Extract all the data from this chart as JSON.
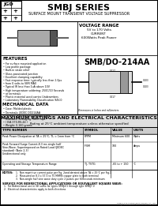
{
  "title": "SMBJ SERIES",
  "subtitle": "SURFACE MOUNT TRANSIENT VOLTAGE SUPPRESSOR",
  "voltage_range_title": "VOLTAGE RANGE",
  "voltage_range_line1": "5V to 170 Volts",
  "voltage_range_line2": "CURRENT",
  "voltage_range_line3": "600Watts Peak Power",
  "part_label": "SMB/DO-214AA",
  "features_title": "FEATURES",
  "features": [
    "For surface mounted application",
    "Low profile package",
    "Built-in strain relief",
    "Glass passivated junction",
    "Excellent clamping capability",
    "Fast response time: typically less than 1.0ps",
    "from 0 volts to VBR MAX",
    "Typical IR less than 1uA above 10V",
    "High temperature soldering: 250C/10 Seconds",
    "at terminals",
    "Plastic material used carries Underwriters",
    "Laboratory Flammability Classification 94V-0"
  ],
  "mech_title": "MECHANICAL DATA",
  "mech": [
    "Case: Molded plastic",
    "Terminals: JEDEC DO214AA",
    "Polarity: Indicated by cathode band",
    "Standard Packaging: 5mm tape",
    "( EIA 370-RS-44 )",
    "Weight: 0.160 grams"
  ],
  "table_title": "MAXIMUM RATINGS AND ELECTRICAL CHARACTERISTICS",
  "table_subtitle": "Rating at 25°C ambient temperature unless otherwise specified",
  "col_headers": [
    "TYPE NUMBER",
    "SYMBOL",
    "VALUE",
    "UNITS"
  ],
  "row1_param": "Peak Power Dissipation at TA = 25°C, TL = 1mm from °C",
  "row1_symbol": "PPPM",
  "row1_value": "Minimum 600",
  "row1_units": "Watts",
  "row2_param1": "Peak Forward Surge Current,8.3 ms single half",
  "row2_param2": "Sine-Wave, Superimposed on Rated Load (JEDEC",
  "row2_param3": "standard) (Note 2,3)",
  "row2_param4": "Unidirectional only",
  "row2_symbol": "IFSM",
  "row2_value": "100",
  "row2_units": "Amps",
  "row3_param": "Operating and Storage Temperature Range",
  "row3_symbol": "TJ, TSTG",
  "row3_value": "-65 to + 150",
  "row3_units": "°C",
  "notes_title": "NOTES:",
  "note1": "1.  Non repetitive current pulse per Fig. 2and derated above TA = 25°C per Fig.1",
  "note2": "2.  Measured on 8.3 x 57.5 to 75 MHMS copper plate to both terminal",
  "note3": "3.  Non-single half sine wave duty cycle 2 pulses per 60seconds minimum",
  "service_note": "SERVICE FOR BIDIRECTIONAL APPLICATIONS OR EQUIVALENT SQUARE WAVE:",
  "service1": "1.  For Bidirectional use in GE suffix for types SMBJ4.5 through type SMBJ7.0",
  "service2": "2.  Electrical characteristics apply to both directions",
  "footer": "SMBJ8.0CA DATASHEET SERIES CO. LTD.",
  "bg_color": "#f5f5f5"
}
